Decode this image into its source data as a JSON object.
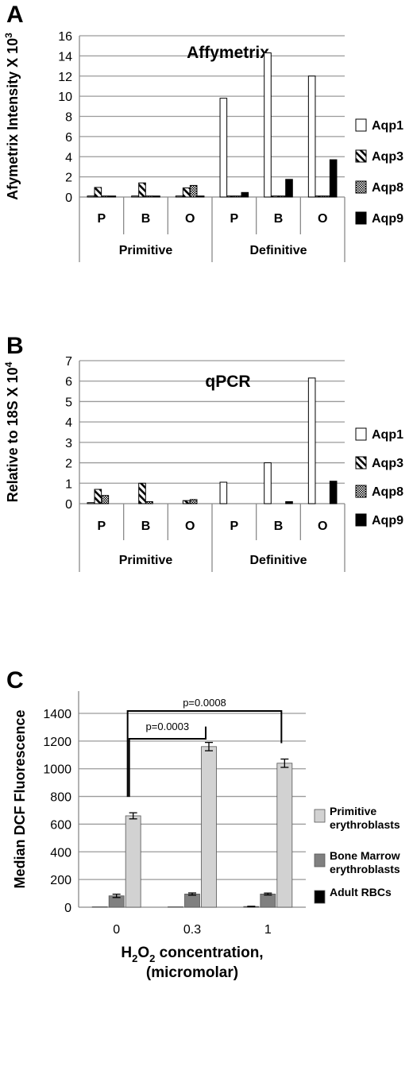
{
  "chart_data": [
    {
      "panel": "A",
      "type": "bar",
      "title": "Affymetrix",
      "ylabel": "Afymetrix Intensity X 10",
      "ylabel_sup": "3",
      "ylim": [
        0,
        16
      ],
      "yticks": [
        0,
        2,
        4,
        6,
        8,
        10,
        12,
        14,
        16
      ],
      "grid": true,
      "legend_position": "right",
      "categories": [
        "P",
        "B",
        "O",
        "P",
        "B",
        "O"
      ],
      "groups": [
        {
          "name": "Primitive",
          "span": [
            0,
            2
          ]
        },
        {
          "name": "Definitive",
          "span": [
            3,
            5
          ]
        }
      ],
      "series": [
        {
          "name": "Aqp1",
          "pattern": "open",
          "values": [
            0.1,
            0.1,
            0.1,
            9.8,
            14.3,
            12.0
          ]
        },
        {
          "name": "Aqp3",
          "pattern": "striped",
          "values": [
            0.95,
            1.4,
            0.9,
            0.1,
            0.1,
            0.1
          ]
        },
        {
          "name": "Aqp8",
          "pattern": "checkered",
          "values": [
            0.1,
            0.1,
            1.15,
            0.1,
            0.1,
            0.1
          ]
        },
        {
          "name": "Aqp9",
          "pattern": "solid",
          "values": [
            0.1,
            0.1,
            0.1,
            0.45,
            1.75,
            3.7
          ]
        }
      ]
    },
    {
      "panel": "B",
      "type": "bar",
      "title": "qPCR",
      "ylabel": "Relative to 18S X 10",
      "ylabel_sup": "4",
      "ylim": [
        0,
        7
      ],
      "yticks": [
        0,
        1,
        2,
        3,
        4,
        5,
        6,
        7
      ],
      "grid": true,
      "legend_position": "right",
      "categories": [
        "P",
        "B",
        "O",
        "P",
        "B",
        "O"
      ],
      "groups": [
        {
          "name": "Primitive",
          "span": [
            0,
            2
          ]
        },
        {
          "name": "Definitive",
          "span": [
            3,
            5
          ]
        }
      ],
      "series": [
        {
          "name": "Aqp1",
          "pattern": "open",
          "values": [
            0.05,
            0.0,
            0.0,
            1.05,
            2.0,
            6.15
          ]
        },
        {
          "name": "Aqp3",
          "pattern": "striped",
          "values": [
            0.7,
            1.0,
            0.15,
            0.0,
            0.0,
            0.0
          ]
        },
        {
          "name": "Aqp8",
          "pattern": "checkered",
          "values": [
            0.4,
            0.1,
            0.2,
            0.0,
            0.0,
            0.0
          ]
        },
        {
          "name": "Aqp9",
          "pattern": "solid",
          "values": [
            0.0,
            0.0,
            0.0,
            0.0,
            0.1,
            1.1
          ]
        }
      ]
    },
    {
      "panel": "C",
      "type": "bar",
      "title": "",
      "ylabel": "Median DCF Fluorescence",
      "xlabel_line1_pre": "H",
      "xlabel_line1_sub1": "2",
      "xlabel_line1_mid": "O",
      "xlabel_line1_sub2": "2",
      "xlabel_line1_post": " concentration,",
      "xlabel_line2": "(micromolar)",
      "ylim": [
        0,
        1400
      ],
      "yticks": [
        0,
        200,
        400,
        600,
        800,
        1000,
        1200,
        1400
      ],
      "grid": true,
      "legend_position": "right",
      "categories": [
        "0",
        "0.3",
        "1"
      ],
      "series": [
        {
          "name_line1": "Adult RBCs",
          "name_line2": "",
          "color": "#000000",
          "values": [
            3,
            3,
            5
          ],
          "errors": [
            0,
            0,
            2
          ]
        },
        {
          "name_line1": "Bone Marrow",
          "name_line2": "erythroblasts",
          "color": "#808080",
          "values": [
            82,
            95,
            95
          ],
          "errors": [
            12,
            8,
            7
          ]
        },
        {
          "name_line1": "Primitive",
          "name_line2": "erythroblasts",
          "color": "#d2d2d2",
          "values": [
            660,
            1160,
            1040
          ],
          "errors": [
            22,
            30,
            30
          ]
        }
      ],
      "annotations": [
        {
          "text": "p=0.0003",
          "from_category": 0,
          "to_category": 1
        },
        {
          "text": "p=0.0008",
          "from_category": 0,
          "to_category": 2
        }
      ]
    }
  ]
}
